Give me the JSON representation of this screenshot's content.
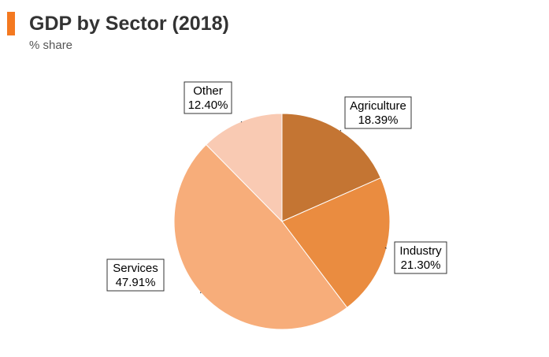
{
  "header": {
    "title": "GDP by Sector (2018)",
    "subtitle": "% share",
    "accent_color": "#f47920"
  },
  "chart_data": {
    "type": "pie",
    "title": "GDP by Sector (2018)",
    "subtitle": "% share",
    "slices": [
      {
        "name": "Agriculture",
        "value": 18.39,
        "display": "18.39%",
        "color": "#c47533"
      },
      {
        "name": "Industry",
        "value": 21.3,
        "display": "21.30%",
        "color": "#ea8c40"
      },
      {
        "name": "Services",
        "value": 47.91,
        "display": "47.91%",
        "color": "#f7ad7a"
      },
      {
        "name": "Other",
        "value": 12.4,
        "display": "12.40%",
        "color": "#f9cab3"
      }
    ],
    "start_angle": "12 o'clock",
    "direction": "clockwise",
    "legend": "none",
    "labels": "callout boxes"
  }
}
